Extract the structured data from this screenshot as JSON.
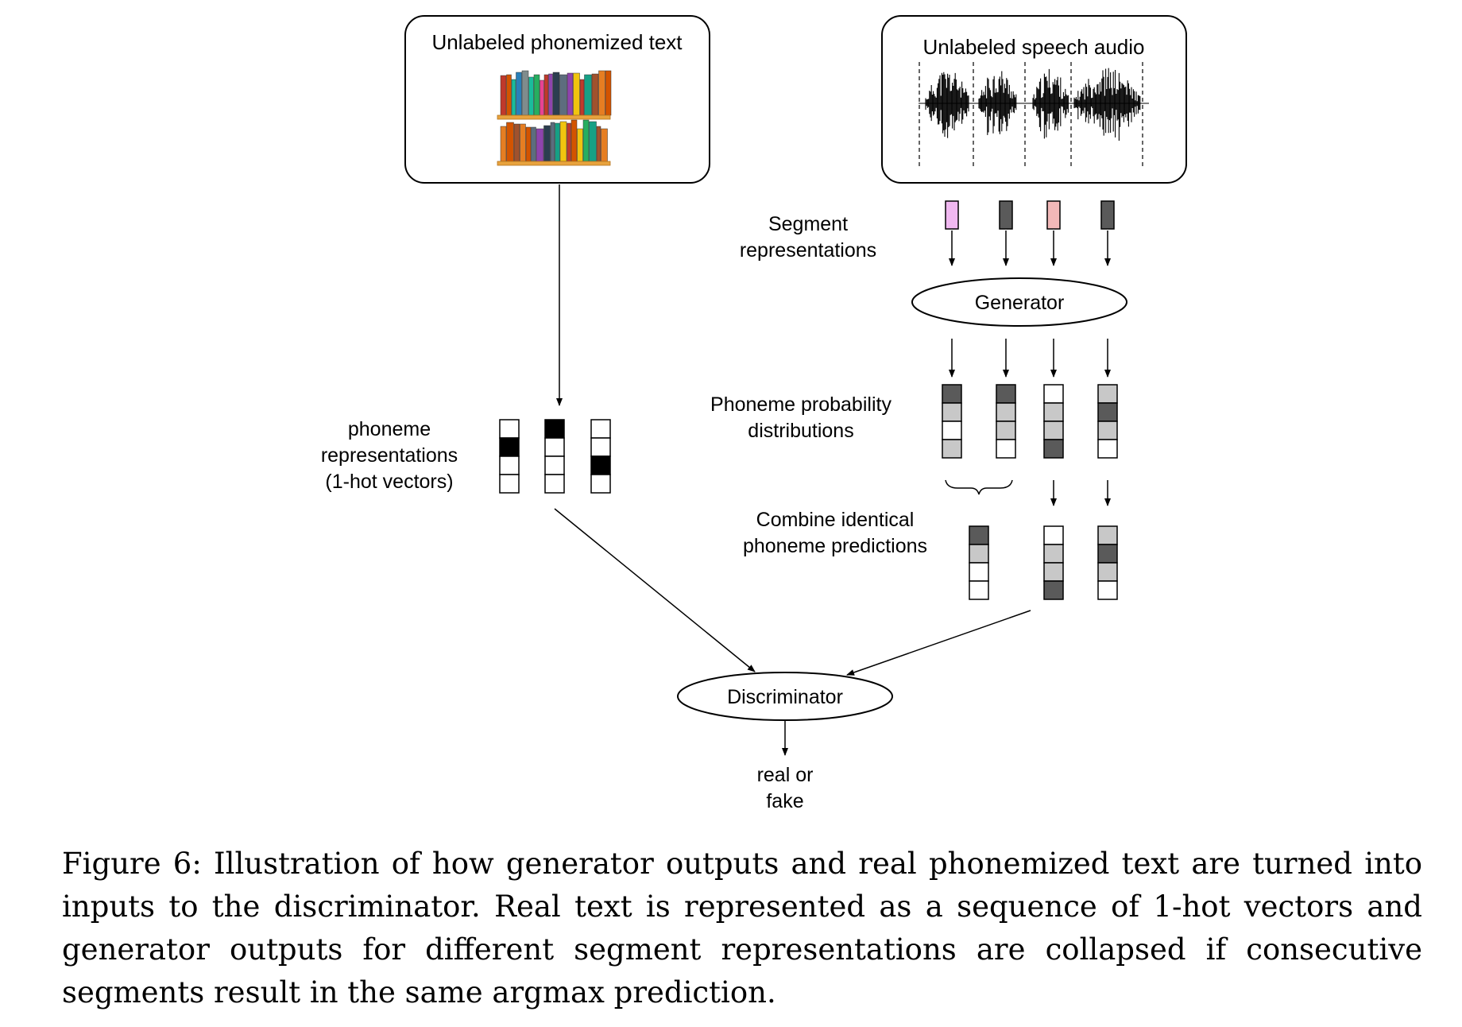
{
  "boxes": {
    "text_corpus": {
      "title": "Unlabeled phonemized text",
      "icon": "bookshelf-icon"
    },
    "speech": {
      "title": "Unlabeled speech audio",
      "icon": "waveform-icon"
    }
  },
  "labels": {
    "segment": [
      "Segment",
      "representations"
    ],
    "generator": "Generator",
    "phoneme_prob": [
      "Phoneme probability",
      "distributions"
    ],
    "phoneme_reps": [
      "phoneme",
      "representations",
      "(1-hot vectors)"
    ],
    "combine": [
      "Combine identical",
      "phoneme predictions"
    ],
    "discriminator": "Discriminator",
    "output": [
      "real or",
      "fake"
    ]
  },
  "vectors": {
    "segment_colors": [
      "#f0b8f0",
      "#5a5a5a",
      "#f2b8b8",
      "#5a5a5a"
    ],
    "one_hot": [
      [
        0,
        1,
        0,
        0
      ],
      [
        1,
        0,
        0,
        0
      ],
      [
        0,
        0,
        1,
        0
      ]
    ],
    "probability": [
      [
        "#5a5a5a",
        "#c8c8c8",
        "#ffffff",
        "#c8c8c8"
      ],
      [
        "#5a5a5a",
        "#c8c8c8",
        "#c8c8c8",
        "#ffffff"
      ],
      [
        "#ffffff",
        "#c8c8c8",
        "#c8c8c8",
        "#5a5a5a"
      ],
      [
        "#c8c8c8",
        "#5a5a5a",
        "#c8c8c8",
        "#ffffff"
      ]
    ],
    "combined": [
      [
        "#5a5a5a",
        "#c8c8c8",
        "#ffffff",
        "#ffffff"
      ],
      [
        "#ffffff",
        "#c8c8c8",
        "#c8c8c8",
        "#5a5a5a"
      ],
      [
        "#c8c8c8",
        "#5a5a5a",
        "#c8c8c8",
        "#ffffff"
      ]
    ]
  },
  "caption": "Figure 6: Illustration of how generator outputs and real phonemized text are turned into inputs to the discriminator. Real text is represented as a sequence of 1-hot vectors and generator outputs for different segment representations are collapsed if consecutive segments result in the same argmax prediction."
}
